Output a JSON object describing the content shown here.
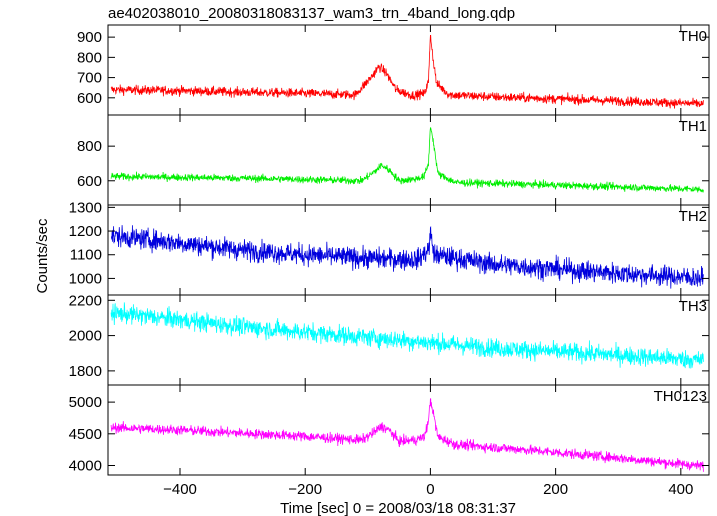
{
  "chart_data": {
    "type": "line",
    "title": "ae402038010_20080318083137_wam3_trn_4band_long.qdp",
    "xlabel": "Time [sec] 0 = 2008/03/18 08:31:37",
    "ylabel": "Counts/sec",
    "xlim": [
      -515,
      445
    ],
    "x_ticks": [
      -400,
      -200,
      0,
      200,
      400
    ],
    "x_tick_labels": [
      "−400",
      "−200",
      "0",
      "200",
      "400"
    ],
    "x_range_data": [
      -510,
      436
    ],
    "grid": false,
    "legend": "none",
    "panels": [
      {
        "name": "TH0",
        "color": "#ff0000",
        "ylim": [
          515,
          960
        ],
        "yticks": [
          600,
          700,
          800,
          900
        ],
        "ytick_labels": [
          "600",
          "700",
          "800",
          "900"
        ],
        "profile": [
          [
            -510,
            640
          ],
          [
            -400,
            635
          ],
          [
            -300,
            628
          ],
          [
            -200,
            622
          ],
          [
            -120,
            615
          ],
          [
            -95,
            700
          ],
          [
            -82,
            755
          ],
          [
            -70,
            720
          ],
          [
            -55,
            640
          ],
          [
            -30,
            612
          ],
          [
            -10,
            620
          ],
          [
            -3,
            680
          ],
          [
            0,
            920
          ],
          [
            4,
            800
          ],
          [
            10,
            670
          ],
          [
            30,
            615
          ],
          [
            100,
            605
          ],
          [
            250,
            590
          ],
          [
            436,
            570
          ]
        ],
        "noise": 22
      },
      {
        "name": "TH1",
        "color": "#00ee00",
        "ylim": [
          460,
          980
        ],
        "yticks": [
          600,
          800
        ],
        "ytick_labels": [
          "600",
          "800"
        ],
        "profile": [
          [
            -510,
            625
          ],
          [
            -400,
            620
          ],
          [
            -300,
            615
          ],
          [
            -200,
            608
          ],
          [
            -110,
            600
          ],
          [
            -90,
            650
          ],
          [
            -78,
            690
          ],
          [
            -65,
            660
          ],
          [
            -50,
            600
          ],
          [
            -25,
            610
          ],
          [
            -10,
            625
          ],
          [
            -3,
            700
          ],
          [
            0,
            920
          ],
          [
            5,
            820
          ],
          [
            12,
            640
          ],
          [
            40,
            590
          ],
          [
            150,
            580
          ],
          [
            300,
            565
          ],
          [
            436,
            550
          ]
        ],
        "noise": 20
      },
      {
        "name": "TH2",
        "color": "#0000dd",
        "ylim": [
          930,
          1310
        ],
        "yticks": [
          1000,
          1100,
          1200,
          1300
        ],
        "ytick_labels": [
          "1000",
          "1100",
          "1200",
          "1300"
        ],
        "profile": [
          [
            -510,
            1180
          ],
          [
            -400,
            1150
          ],
          [
            -300,
            1120
          ],
          [
            -200,
            1100
          ],
          [
            -100,
            1085
          ],
          [
            -20,
            1080
          ],
          [
            -3,
            1120
          ],
          [
            0,
            1190
          ],
          [
            6,
            1100
          ],
          [
            100,
            1060
          ],
          [
            250,
            1030
          ],
          [
            436,
            1000
          ]
        ],
        "noise": 42
      },
      {
        "name": "TH3",
        "color": "#00ffff",
        "ylim": [
          1720,
          2230
        ],
        "yticks": [
          1800,
          2000,
          2200
        ],
        "ytick_labels": [
          "1800",
          "2000",
          "2200"
        ],
        "profile": [
          [
            -510,
            2130
          ],
          [
            -400,
            2090
          ],
          [
            -300,
            2050
          ],
          [
            -200,
            2020
          ],
          [
            -100,
            1990
          ],
          [
            0,
            1960
          ],
          [
            100,
            1930
          ],
          [
            250,
            1900
          ],
          [
            436,
            1860
          ]
        ],
        "noise": 50
      },
      {
        "name": "TH0123",
        "color": "#ff00ff",
        "ylim": [
          3850,
          5270
        ],
        "yticks": [
          4000,
          4500,
          5000
        ],
        "ytick_labels": [
          "4000",
          "4500",
          "5000"
        ],
        "profile": [
          [
            -510,
            4600
          ],
          [
            -400,
            4560
          ],
          [
            -300,
            4510
          ],
          [
            -200,
            4460
          ],
          [
            -110,
            4400
          ],
          [
            -90,
            4520
          ],
          [
            -78,
            4620
          ],
          [
            -65,
            4550
          ],
          [
            -50,
            4380
          ],
          [
            -25,
            4400
          ],
          [
            -10,
            4450
          ],
          [
            -3,
            4700
          ],
          [
            0,
            5050
          ],
          [
            5,
            4800
          ],
          [
            12,
            4450
          ],
          [
            40,
            4330
          ],
          [
            150,
            4250
          ],
          [
            300,
            4120
          ],
          [
            436,
            3990
          ]
        ],
        "noise": 75
      }
    ]
  }
}
